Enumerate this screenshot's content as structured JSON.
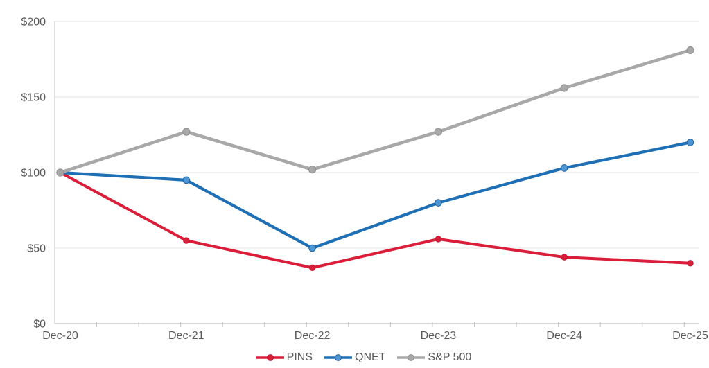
{
  "chart_data": {
    "type": "line",
    "title": "",
    "categories": [
      "Dec-20",
      "Dec-21",
      "Dec-22",
      "Dec-23",
      "Dec-24",
      "Dec-25"
    ],
    "series": [
      {
        "name": "PINS",
        "values": [
          100,
          55,
          37,
          56,
          44,
          40
        ],
        "color": "#DA1E3A",
        "marker_fill": "#DA1E3A",
        "marker_stroke": "#C2132E"
      },
      {
        "name": "QNET",
        "values": [
          100,
          95,
          50,
          80,
          103,
          120
        ],
        "color": "#1F6FB5",
        "marker_fill": "#4E95D4",
        "marker_stroke": "#1B61A1"
      },
      {
        "name": "S&P 500",
        "values": [
          100,
          127,
          102,
          127,
          156,
          181
        ],
        "color": "#A8A8A8",
        "marker_fill": "#A8A8A8",
        "marker_stroke": "#8F8F8F"
      }
    ],
    "y_axis": {
      "range": [
        0,
        200
      ],
      "ticks": [
        {
          "value": 0,
          "label": "$0"
        },
        {
          "value": 50,
          "label": "$50"
        },
        {
          "value": 100,
          "label": "$100"
        },
        {
          "value": 150,
          "label": "$150"
        },
        {
          "value": 200,
          "label": "$200"
        }
      ]
    },
    "grid": "horizontal",
    "legend": {
      "position": "bottom",
      "entries": [
        "PINS",
        "QNET",
        "S&P 500"
      ]
    }
  },
  "theme": {
    "background": "#FFFFFF",
    "axis_color": "#BFBFBF",
    "gridline_color": "#E4E4E4",
    "label_color": "#595959"
  }
}
